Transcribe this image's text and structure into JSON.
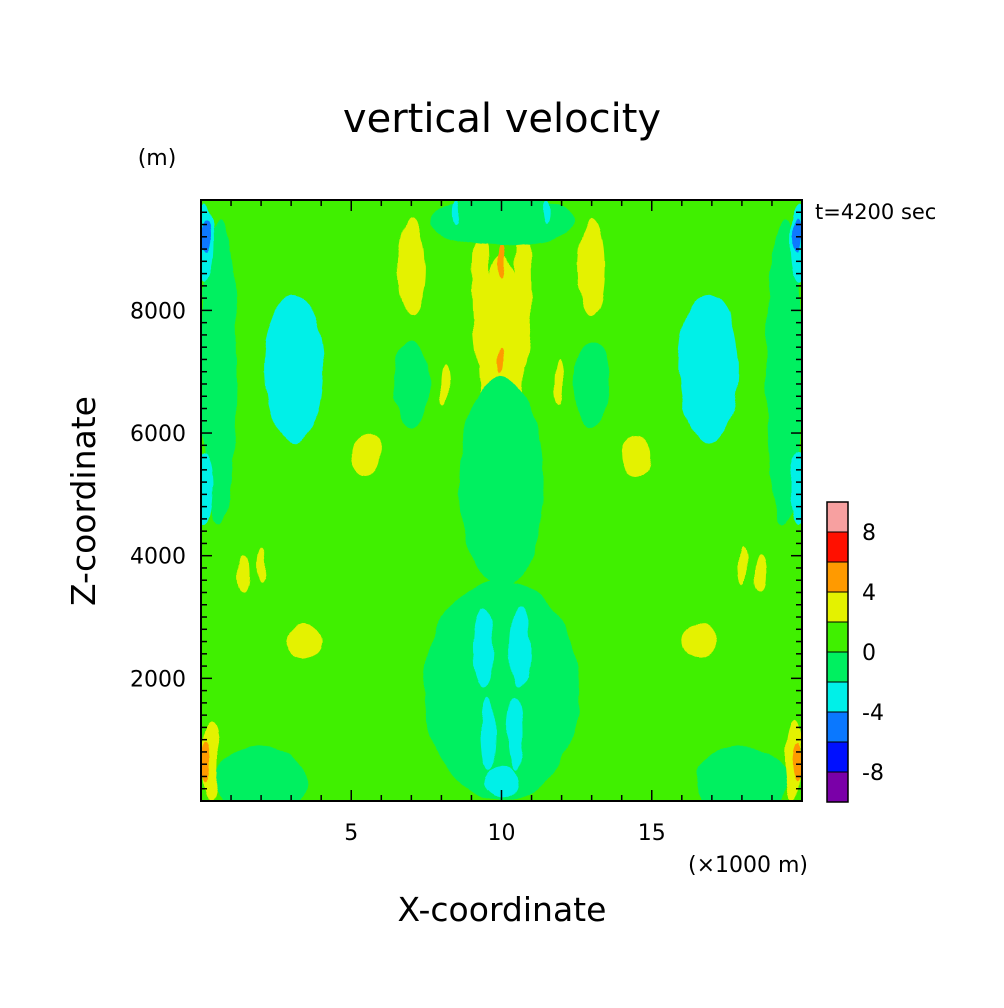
{
  "chart_data": {
    "type": "heatmap",
    "title": "vertical velocity",
    "xlabel": "X-coordinate",
    "ylabel": "Z-coordinate",
    "x_unit": "(×1000 m)",
    "y_unit": "(m)",
    "time_label": "t=4200 sec",
    "xlim": [
      0,
      20
    ],
    "ylim": [
      0,
      9800
    ],
    "x_ticks": [
      5,
      10,
      15
    ],
    "y_ticks": [
      2000,
      4000,
      6000,
      8000
    ],
    "x_minor_step": 1,
    "y_minor_step": 200,
    "colorbar": {
      "levels": [
        -10,
        -8,
        -6,
        -4,
        -2,
        0,
        2,
        4,
        6,
        8,
        10
      ],
      "colors": [
        "#7a00a8",
        "#0010ff",
        "#0a78ff",
        "#00f0e8",
        "#00f060",
        "#40f000",
        "#e4f200",
        "#ff9a00",
        "#ff1000",
        "#f7a0a0"
      ],
      "labels": [
        "-8",
        "-4",
        "0",
        "4",
        "8"
      ],
      "label_values": [
        -8,
        -4,
        0,
        4,
        8
      ]
    },
    "background_value": 1,
    "features": [
      {
        "value": 3,
        "x": 9.3,
        "y": 8400,
        "rx": 0.28,
        "ry": 1300
      },
      {
        "value": 3,
        "x": 10.7,
        "y": 8400,
        "rx": 0.28,
        "ry": 1300
      },
      {
        "value": 3,
        "x": 10.0,
        "y": 7300,
        "rx": 0.75,
        "ry": 1600
      },
      {
        "value": 5,
        "x": 10.0,
        "y": 8800,
        "rx": 0.12,
        "ry": 280
      },
      {
        "value": 5,
        "x": 10.0,
        "y": 7150,
        "rx": 0.1,
        "ry": 200
      },
      {
        "value": 3,
        "x": 7.0,
        "y": 8700,
        "rx": 0.45,
        "ry": 800
      },
      {
        "value": 3,
        "x": 13.0,
        "y": 8700,
        "rx": 0.45,
        "ry": 800
      },
      {
        "value": 3,
        "x": 5.5,
        "y": 5650,
        "rx": 0.5,
        "ry": 350
      },
      {
        "value": 3,
        "x": 14.5,
        "y": 5650,
        "rx": 0.5,
        "ry": 350
      },
      {
        "value": 3,
        "x": 8.1,
        "y": 6800,
        "rx": 0.15,
        "ry": 350
      },
      {
        "value": 3,
        "x": 11.9,
        "y": 6800,
        "rx": 0.15,
        "ry": 350
      },
      {
        "value": -1,
        "x": 10.0,
        "y": 9450,
        "rx": 2.4,
        "ry": 400
      },
      {
        "value": -1,
        "x": 10.0,
        "y": 5200,
        "rx": 1.4,
        "ry": 1700
      },
      {
        "value": -1,
        "x": 10.0,
        "y": 1800,
        "rx": 2.6,
        "ry": 1800
      },
      {
        "value": -1,
        "x": 7.0,
        "y": 6800,
        "rx": 0.6,
        "ry": 700
      },
      {
        "value": -1,
        "x": 13.0,
        "y": 6800,
        "rx": 0.6,
        "ry": 700
      },
      {
        "value": -1,
        "x": 2.0,
        "y": 300,
        "rx": 1.5,
        "ry": 600
      },
      {
        "value": -1,
        "x": 18.0,
        "y": 300,
        "rx": 1.5,
        "ry": 600
      },
      {
        "value": -1,
        "x": 0.6,
        "y": 7000,
        "rx": 0.6,
        "ry": 2500
      },
      {
        "value": -1,
        "x": 19.4,
        "y": 7000,
        "rx": 0.6,
        "ry": 2500
      },
      {
        "value": -3,
        "x": 3.1,
        "y": 7050,
        "rx": 1.0,
        "ry": 1200
      },
      {
        "value": -3,
        "x": 16.9,
        "y": 7050,
        "rx": 1.0,
        "ry": 1200
      },
      {
        "value": -3,
        "x": 9.4,
        "y": 2500,
        "rx": 0.35,
        "ry": 650
      },
      {
        "value": -3,
        "x": 10.6,
        "y": 2500,
        "rx": 0.35,
        "ry": 650
      },
      {
        "value": -3,
        "x": 9.55,
        "y": 1100,
        "rx": 0.25,
        "ry": 600
      },
      {
        "value": -3,
        "x": 10.45,
        "y": 1100,
        "rx": 0.25,
        "ry": 600
      },
      {
        "value": -3,
        "x": 10.0,
        "y": 300,
        "rx": 0.6,
        "ry": 250
      },
      {
        "value": -3,
        "x": 0.1,
        "y": 5100,
        "rx": 0.3,
        "ry": 600
      },
      {
        "value": -3,
        "x": 19.9,
        "y": 5100,
        "rx": 0.3,
        "ry": 600
      },
      {
        "value": -3,
        "x": 0.1,
        "y": 9100,
        "rx": 0.3,
        "ry": 650
      },
      {
        "value": -3,
        "x": 19.9,
        "y": 9100,
        "rx": 0.3,
        "ry": 650
      },
      {
        "value": -3,
        "x": 11.5,
        "y": 9600,
        "rx": 0.12,
        "ry": 200
      },
      {
        "value": -3,
        "x": 8.5,
        "y": 9600,
        "rx": 0.12,
        "ry": 200
      },
      {
        "value": -5,
        "x": 0.15,
        "y": 9200,
        "rx": 0.15,
        "ry": 280
      },
      {
        "value": -5,
        "x": 19.85,
        "y": 9200,
        "rx": 0.15,
        "ry": 280
      },
      {
        "value": 3,
        "x": 3.4,
        "y": 2600,
        "rx": 0.6,
        "ry": 280
      },
      {
        "value": 3,
        "x": 16.6,
        "y": 2600,
        "rx": 0.6,
        "ry": 280
      },
      {
        "value": 3,
        "x": 1.4,
        "y": 3700,
        "rx": 0.2,
        "ry": 300
      },
      {
        "value": 3,
        "x": 18.6,
        "y": 3700,
        "rx": 0.2,
        "ry": 300
      },
      {
        "value": 3,
        "x": 2.0,
        "y": 3850,
        "rx": 0.15,
        "ry": 300
      },
      {
        "value": 3,
        "x": 18.0,
        "y": 3850,
        "rx": 0.15,
        "ry": 300
      },
      {
        "value": 3,
        "x": 0.3,
        "y": 650,
        "rx": 0.3,
        "ry": 650
      },
      {
        "value": 3,
        "x": 19.7,
        "y": 650,
        "rx": 0.3,
        "ry": 650
      },
      {
        "value": 5,
        "x": 0.15,
        "y": 620,
        "rx": 0.17,
        "ry": 330
      },
      {
        "value": 5,
        "x": 19.85,
        "y": 620,
        "rx": 0.17,
        "ry": 330
      }
    ]
  }
}
